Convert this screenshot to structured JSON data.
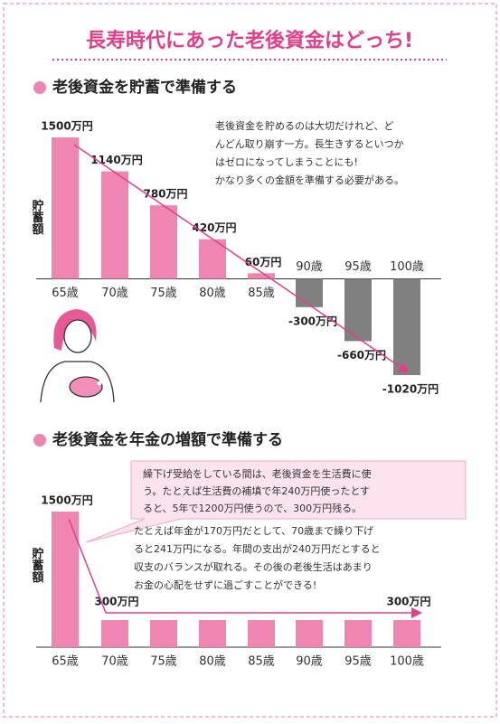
{
  "title": "長寿時代にあった老後資金はどっち!",
  "chart_data": [
    {
      "type": "bar",
      "subtitle": "老後資金を貯蓄で準備する",
      "ylabel": "貯蓄額",
      "categories": [
        "65歳",
        "70歳",
        "75歳",
        "80歳",
        "85歳",
        "90歳",
        "95歳",
        "100歳"
      ],
      "values": [
        1500,
        1140,
        780,
        420,
        60,
        -300,
        -660,
        -1020
      ],
      "value_labels": [
        "1500万円",
        "1140万円",
        "780万円",
        "420万円",
        "60万円",
        "-300万円",
        "-660万円",
        "-1020万円"
      ],
      "color": "#ef86b1",
      "negative_color": "#808080",
      "annotation": [
        "老後資金を貯めるのは大切だけれど、ど",
        "んどん取り崩す一方。長生きするといつか",
        "はゼロになってしまうことにも!",
        "かなり多くの金額を準備する必要がある。"
      ]
    },
    {
      "type": "bar",
      "subtitle": "老後資金を年金の増額で準備する",
      "ylabel": "貯蓄額",
      "categories": [
        "65歳",
        "70歳",
        "75歳",
        "80歳",
        "85歳",
        "90歳",
        "95歳",
        "100歳"
      ],
      "values": [
        1500,
        300,
        300,
        300,
        300,
        300,
        300,
        300
      ],
      "value_labels": [
        "1500万円",
        "300万円",
        null,
        null,
        null,
        null,
        null,
        "300万円"
      ],
      "color": "#ef86b1",
      "callout": [
        "繰下げ受給をしている間は、老後資金を生活費に使",
        "う。たとえば生活費の補填で年240万円使ったとす",
        "ると、5年で1200万円使うので、300万円残る。"
      ],
      "annotation": [
        "たとえば年金が170万円だとして、70歳まで繰り下げ",
        "ると241万円になる。年間の支出が240万円だとすると",
        "収支のバランスが取れる。その後の老後生活はあまり",
        "お金の心配をせずに過ごすことができる!"
      ]
    }
  ]
}
